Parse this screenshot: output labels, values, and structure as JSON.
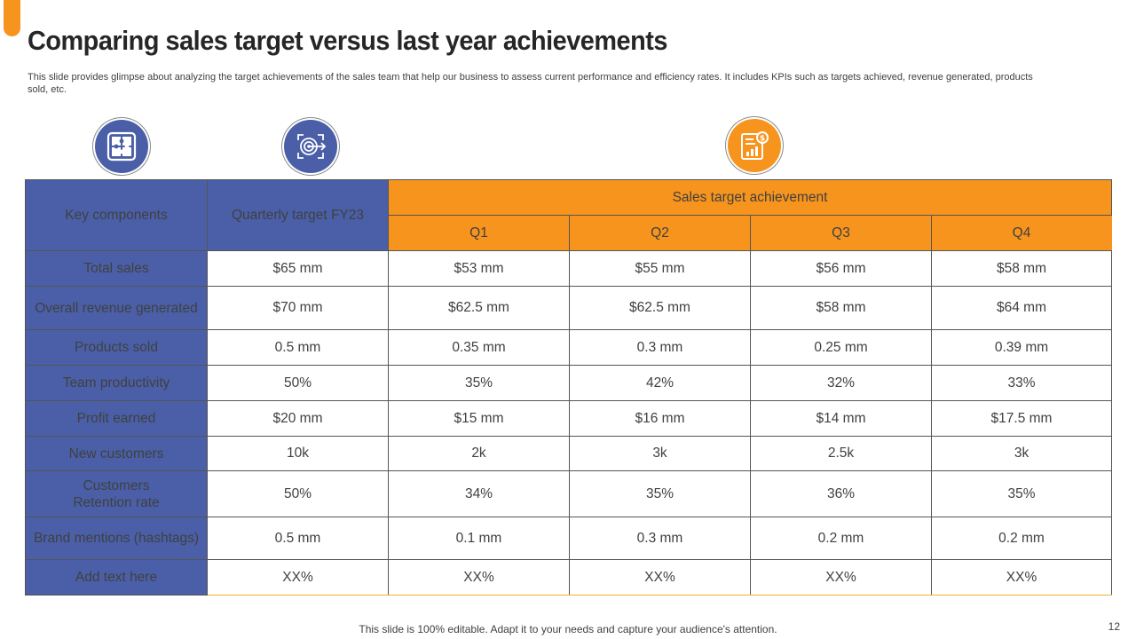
{
  "slide": {
    "title": "Comparing sales target versus last year achievements",
    "subtitle": "This slide provides glimpse about analyzing the target achievements of the sales team that help our business to assess current performance and efficiency rates. It includes KPIs such as targets achieved, revenue generated, products sold, etc.",
    "footer": "This slide is 100% editable. Adapt it to your needs and capture your audience's attention.",
    "page_number": "12"
  },
  "colors": {
    "accent": "#F7941D",
    "brand": "#4A5FA7"
  },
  "icons": [
    "puzzle-icon",
    "target-icon",
    "sales-report-icon"
  ],
  "table": {
    "headers": {
      "key_components": "Key components",
      "quarterly_target": "Quarterly target FY23",
      "achievement": "Sales target achievement",
      "quarters": [
        "Q1",
        "Q2",
        "Q3",
        "Q4"
      ]
    },
    "rows": [
      {
        "label": "Total sales",
        "values": [
          "$65 mm",
          "$53 mm",
          "$55 mm",
          "$56 mm",
          "$58 mm"
        ]
      },
      {
        "label": "Overall revenue generated",
        "values": [
          "$70 mm",
          "$62.5 mm",
          "$62.5 mm",
          "$58 mm",
          "$64 mm"
        ]
      },
      {
        "label": "Products sold",
        "values": [
          "0.5 mm",
          "0.35 mm",
          "0.3 mm",
          "0.25 mm",
          "0.39 mm"
        ]
      },
      {
        "label": "Team productivity",
        "values": [
          "50%",
          "35%",
          "42%",
          "32%",
          "33%"
        ]
      },
      {
        "label": "Profit earned",
        "values": [
          "$20 mm",
          "$15 mm",
          "$16 mm",
          "$14 mm",
          "$17.5 mm"
        ]
      },
      {
        "label": "New customers",
        "values": [
          "10k",
          "2k",
          "3k",
          "2.5k",
          "3k"
        ]
      },
      {
        "label_line1": "Customers",
        "label_line2": "Retention rate",
        "values": [
          "50%",
          "34%",
          "35%",
          "36%",
          "35%"
        ]
      },
      {
        "label": "Brand mentions (hashtags)",
        "values": [
          "0.5 mm",
          "0.1 mm",
          "0.3 mm",
          "0.2 mm",
          "0.2 mm"
        ]
      },
      {
        "label": "Add text here",
        "values": [
          "XX%",
          "XX%",
          "XX%",
          "XX%",
          "XX%"
        ]
      }
    ]
  }
}
